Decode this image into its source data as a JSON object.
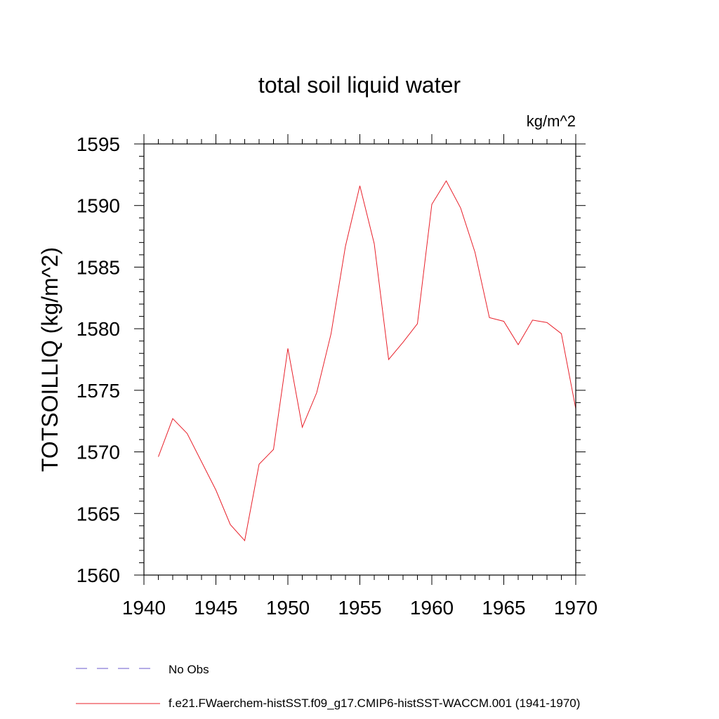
{
  "chart_data": {
    "type": "line",
    "title": "total soil liquid water",
    "units": "kg/m^2",
    "ylabel": "TOTSOILLIQ  (kg/m^2)",
    "xlabel": "",
    "xlim": [
      1940,
      1970
    ],
    "ylim": [
      1560,
      1595
    ],
    "x_ticks": [
      "1940",
      "1945",
      "1950",
      "1955",
      "1960",
      "1965",
      "1970"
    ],
    "y_ticks": [
      "1560",
      "1565",
      "1570",
      "1575",
      "1580",
      "1585",
      "1590",
      "1595"
    ],
    "grid": false,
    "legend_position": "bottom",
    "colors": {
      "model": "#e8202a",
      "obs": "#6a5acd"
    },
    "legend": [
      {
        "label": "No Obs",
        "style": "dashed"
      },
      {
        "label": "f.e21.FWaerchem-histSST.f09_g17.CMIP6-histSST-WACCM.001 (1941-1970)",
        "style": "solid"
      }
    ],
    "series": [
      {
        "x": [
          1941,
          1942,
          1943,
          1944,
          1945,
          1946,
          1947,
          1948,
          1949,
          1950,
          1951,
          1952,
          1953,
          1954,
          1955,
          1956,
          1957,
          1958,
          1959,
          1960,
          1961,
          1962,
          1963,
          1964,
          1965,
          1966,
          1967,
          1968,
          1969,
          1970
        ],
        "values": [
          1569.6,
          1572.7,
          1571.5,
          1569.2,
          1566.9,
          1564.1,
          1562.8,
          1569.0,
          1570.2,
          1578.4,
          1572.0,
          1574.8,
          1579.6,
          1586.7,
          1591.6,
          1586.9,
          1577.5,
          1578.9,
          1580.4,
          1590.1,
          1592.0,
          1589.8,
          1586.2,
          1580.9,
          1580.6,
          1578.7,
          1580.7,
          1580.5,
          1579.6,
          1573.5
        ]
      }
    ]
  }
}
